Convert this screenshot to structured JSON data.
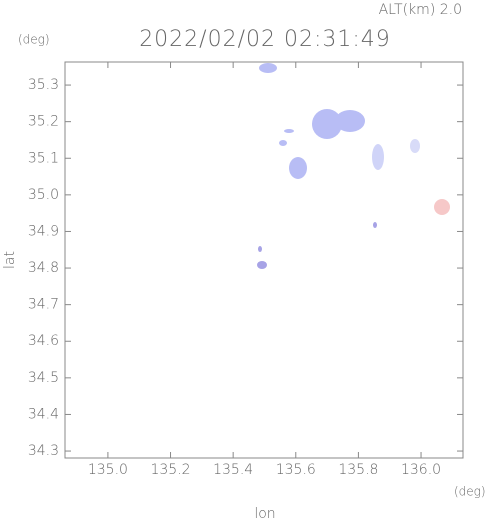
{
  "chart_data": {
    "type": "map",
    "title": "2022/02/02 02:31:49",
    "subtitle": "ALT(km) 2.0",
    "x_label": "lon",
    "y_label": "lat",
    "x_unit": "(deg)",
    "y_unit": "(deg)",
    "xlim": [
      134.863,
      136.134
    ],
    "ylim": [
      34.281,
      35.363
    ],
    "xticks": [
      {
        "value": 135,
        "label": "135.0"
      },
      135.2,
      135.4,
      135.6,
      135.8,
      {
        "value": 136,
        "label": "136.0"
      }
    ],
    "yticks": [
      34.3,
      34.4,
      34.5,
      34.6,
      34.7,
      34.8,
      34.9,
      {
        "value": 35,
        "label": "35.0"
      },
      35.1,
      35.2,
      35.3
    ]
  }
}
